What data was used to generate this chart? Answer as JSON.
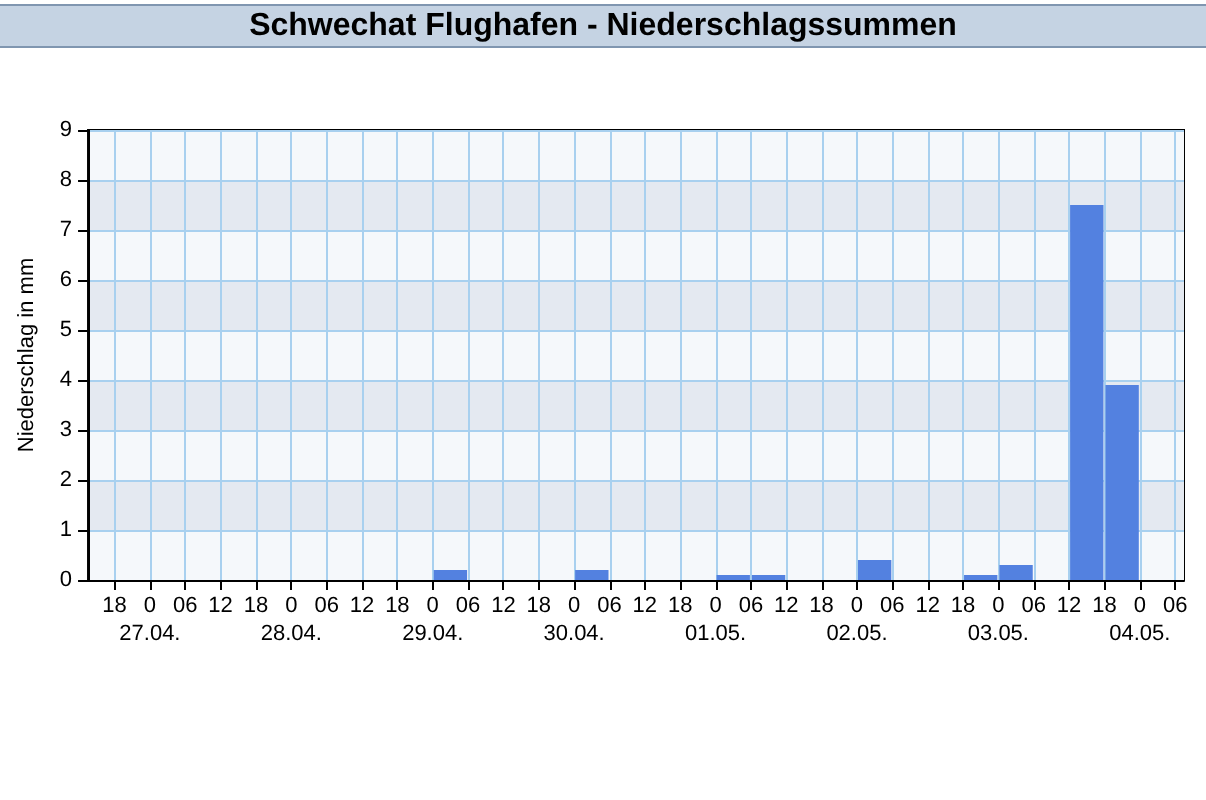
{
  "chart_data": {
    "type": "bar",
    "title": "Schwechat Flughafen - Niederschlagssummen",
    "ylabel": "Niederschlag in mm",
    "x": [
      "--04-29T03:00",
      "--04-30T03:00",
      "--05-01T03:00",
      "--05-01T09:00",
      "--05-02T03:00",
      "--05-02T21:00",
      "--05-03T03:00",
      "--05-03T15:00",
      "--05-03T21:00"
    ],
    "values": [
      0.2,
      0.2,
      0.1,
      0.1,
      0.4,
      0.1,
      0.3,
      7.5,
      3.9
    ],
    "color": "#5381e0",
    "xlim": [
      "--04-26T13:30",
      "--05-04T07:30"
    ],
    "ylim": [
      0,
      9
    ],
    "xticks": [
      {
        "value": "--04-26T18:00",
        "label": "18"
      },
      {
        "value": "--04-27T00:00",
        "label": "0\n27.04."
      },
      {
        "value": "--04-27T06:00",
        "label": "06"
      },
      {
        "value": "--04-27T12:00",
        "label": "12"
      },
      {
        "value": "--04-27T18:00",
        "label": "18"
      },
      {
        "value": "--04-28T00:00",
        "label": "0\n28.04."
      },
      {
        "value": "--04-28T06:00",
        "label": "06"
      },
      {
        "value": "--04-28T12:00",
        "label": "12"
      },
      {
        "value": "--04-28T18:00",
        "label": "18"
      },
      {
        "value": "--04-29T00:00",
        "label": "0\n29.04."
      },
      {
        "value": "--04-29T06:00",
        "label": "06"
      },
      {
        "value": "--04-29T12:00",
        "label": "12"
      },
      {
        "value": "--04-29T18:00",
        "label": "18"
      },
      {
        "value": "--04-30T00:00",
        "label": "0\n30.04."
      },
      {
        "value": "--04-30T06:00",
        "label": "06"
      },
      {
        "value": "--04-30T12:00",
        "label": "12"
      },
      {
        "value": "--04-30T18:00",
        "label": "18"
      },
      {
        "value": "--05-01T00:00",
        "label": "0\n01.05."
      },
      {
        "value": "--05-01T06:00",
        "label": "06"
      },
      {
        "value": "--05-01T12:00",
        "label": "12"
      },
      {
        "value": "--05-01T18:00",
        "label": "18"
      },
      {
        "value": "--05-02T00:00",
        "label": "0\n02.05."
      },
      {
        "value": "--05-02T06:00",
        "label": "06"
      },
      {
        "value": "--05-02T12:00",
        "label": "12"
      },
      {
        "value": "--05-02T18:00",
        "label": "18"
      },
      {
        "value": "--05-03T00:00",
        "label": "0\n03.05."
      },
      {
        "value": "--05-03T06:00",
        "label": "06"
      },
      {
        "value": "--05-03T12:00",
        "label": "12"
      },
      {
        "value": "--05-03T18:00",
        "label": "18"
      },
      {
        "value": "--05-04T00:00",
        "label": "0\n04.05."
      },
      {
        "value": "--05-04T06:00",
        "label": "06"
      }
    ],
    "yticks": [
      0,
      1,
      2,
      3,
      4,
      5,
      6,
      7,
      8,
      9
    ],
    "grid": true
  }
}
